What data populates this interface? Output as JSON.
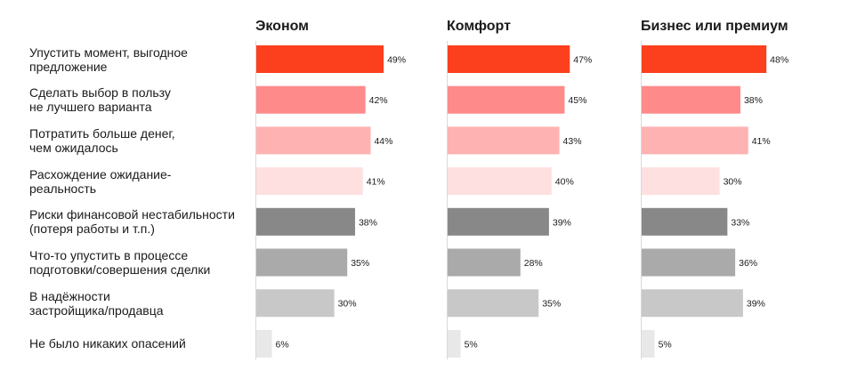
{
  "chart_data": {
    "type": "bar",
    "orientation": "horizontal",
    "categories": [
      "Упустить момент, выгодное\nпредложение",
      "Сделать выбор в пользу\nне лучшего варианта",
      "Потратить больше денег,\nчем ожидалось",
      "Расхождение ожидание-\nреальность",
      "Риски финансовой нестабильности\n(потеря работы и т.п.)",
      "Что-то упустить в процессе\nподготовки/совершения сделки",
      "В надёжности\nзастройщика/продавца",
      "Не было никаких опасений"
    ],
    "series": [
      {
        "name": "Эконом",
        "values": [
          49,
          42,
          44,
          41,
          38,
          35,
          30,
          6
        ]
      },
      {
        "name": "Комфорт",
        "values": [
          47,
          45,
          43,
          40,
          39,
          28,
          35,
          5
        ]
      },
      {
        "name": "Бизнес или премиум",
        "values": [
          48,
          38,
          41,
          30,
          33,
          36,
          39,
          5
        ]
      }
    ],
    "value_suffix": "%",
    "bar_colors": [
      "#fc3f1d",
      "#ff8a8a",
      "#ffb2b2",
      "#ffe0e0",
      "#888888",
      "#aaaaaa",
      "#c8c8c8",
      "#e8e8e8"
    ],
    "xlim": [
      0,
      50
    ],
    "grid": false,
    "legend": "none"
  }
}
